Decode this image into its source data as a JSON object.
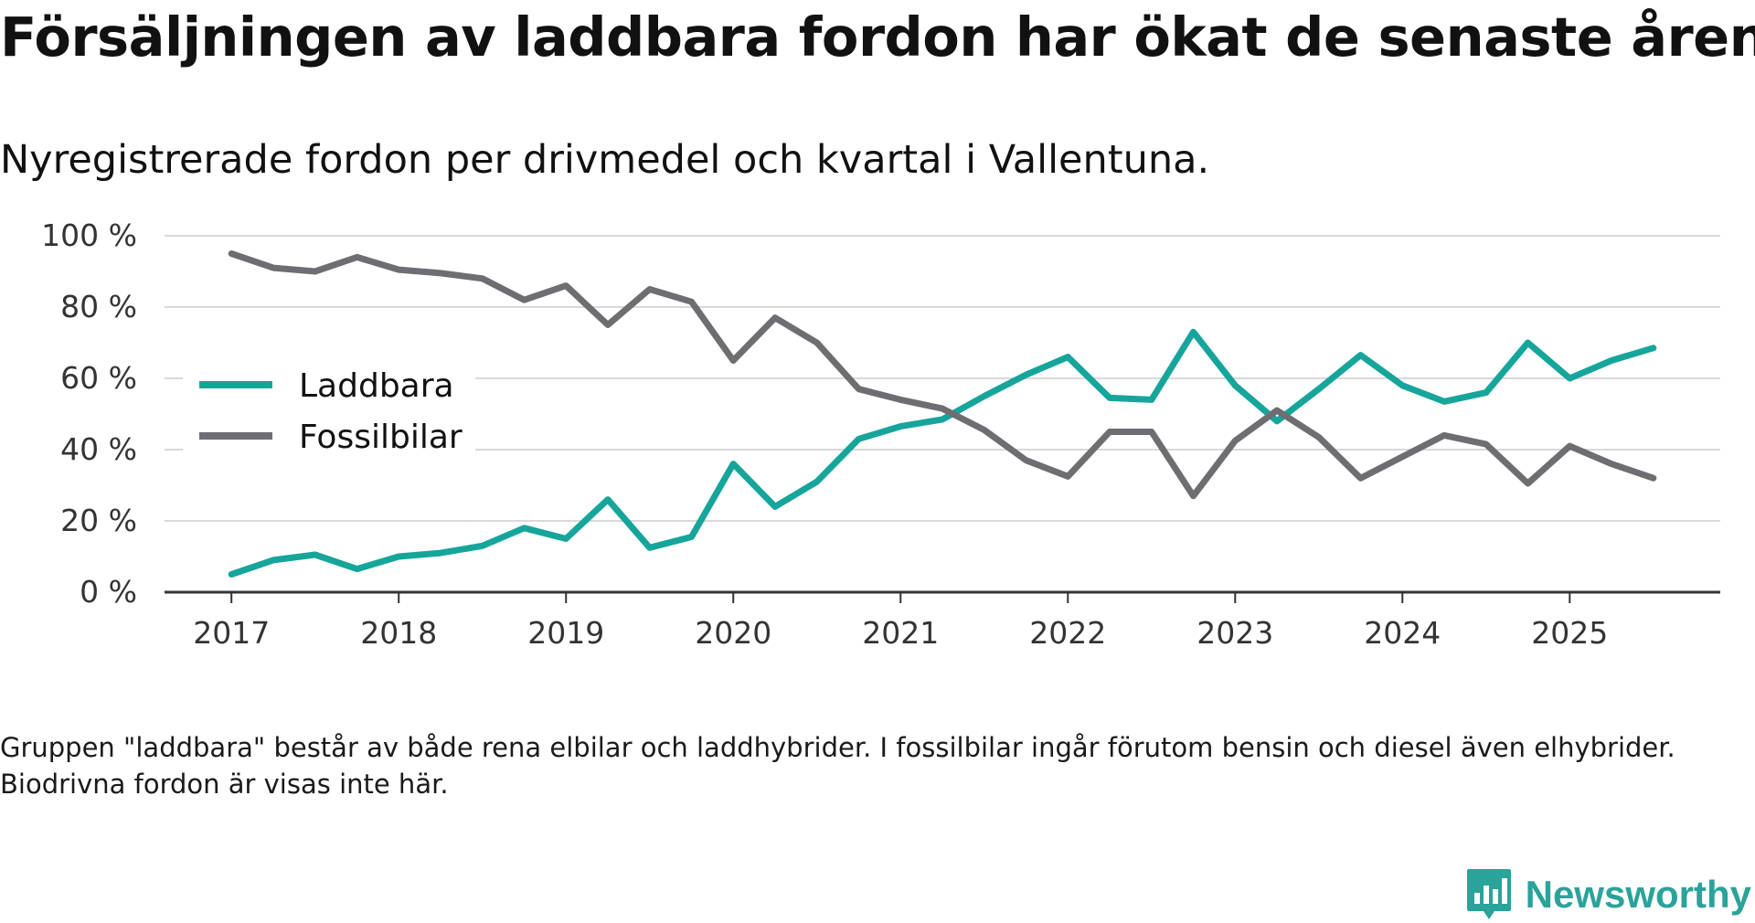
{
  "header": {
    "title": "Försäljningen av laddbara fordon har ökat de senaste åren",
    "subtitle": "Nyregistrerade fordon per drivmedel och kvartal i Vallentuna."
  },
  "footer": {
    "note": "Gruppen \"laddbara\" består av både rena elbilar och laddhybrider. I fossilbilar ingår förutom bensin och diesel även elhybrider. Biodrivna fordon är visas inte här.",
    "brand": "Newsworthy"
  },
  "chart_data": {
    "type": "line",
    "title": "Försäljningen av laddbara fordon har ökat de senaste åren",
    "subtitle": "Nyregistrerade fordon per drivmedel och kvartal i Vallentuna.",
    "xlabel": "",
    "ylabel": "",
    "x": [
      2017.0,
      2017.25,
      2017.5,
      2017.75,
      2018.0,
      2018.25,
      2018.5,
      2018.75,
      2019.0,
      2019.25,
      2019.5,
      2019.75,
      2020.0,
      2020.25,
      2020.5,
      2020.75,
      2021.0,
      2021.25,
      2021.5,
      2021.75,
      2022.0,
      2022.25,
      2022.5,
      2022.75,
      2023.0,
      2023.25,
      2023.5,
      2023.75,
      2024.0,
      2024.25,
      2024.5,
      2024.75,
      2025.0,
      2025.25,
      2025.5
    ],
    "xlim": [
      2016.6,
      2025.9
    ],
    "xticks": [
      2017,
      2018,
      2019,
      2020,
      2021,
      2022,
      2023,
      2024,
      2025
    ],
    "xtick_labels": [
      "2017",
      "2018",
      "2019",
      "2020",
      "2021",
      "2022",
      "2023",
      "2024",
      "2025"
    ],
    "ylim": [
      0,
      100
    ],
    "yticks": [
      0,
      20,
      40,
      60,
      80,
      100
    ],
    "ytick_labels": [
      "0 %",
      "20 %",
      "40 %",
      "60 %",
      "80 %",
      "100 %"
    ],
    "grid": true,
    "legend_position": "left-middle",
    "series": [
      {
        "name": "Laddbara",
        "color": "#16a59b",
        "values": [
          5,
          9,
          10.5,
          6.5,
          10,
          11,
          13,
          18,
          15,
          26,
          12.5,
          15.5,
          36,
          24,
          31,
          43,
          46.5,
          48.5,
          55,
          61,
          66,
          54.5,
          54,
          73,
          58,
          48,
          57,
          66.5,
          58,
          53.5,
          56,
          70,
          60,
          65,
          68.5
        ]
      },
      {
        "name": "Fossilbilar",
        "color": "#6d6d72",
        "values": [
          95,
          91,
          90,
          94,
          90.5,
          89.5,
          88,
          82,
          86,
          75,
          85,
          81.5,
          65,
          77,
          70,
          57,
          54,
          51.5,
          45.5,
          37,
          32.5,
          45,
          45,
          27,
          42.5,
          51,
          43.5,
          32,
          38,
          44,
          41.5,
          30.5,
          41,
          36,
          32
        ]
      }
    ]
  }
}
